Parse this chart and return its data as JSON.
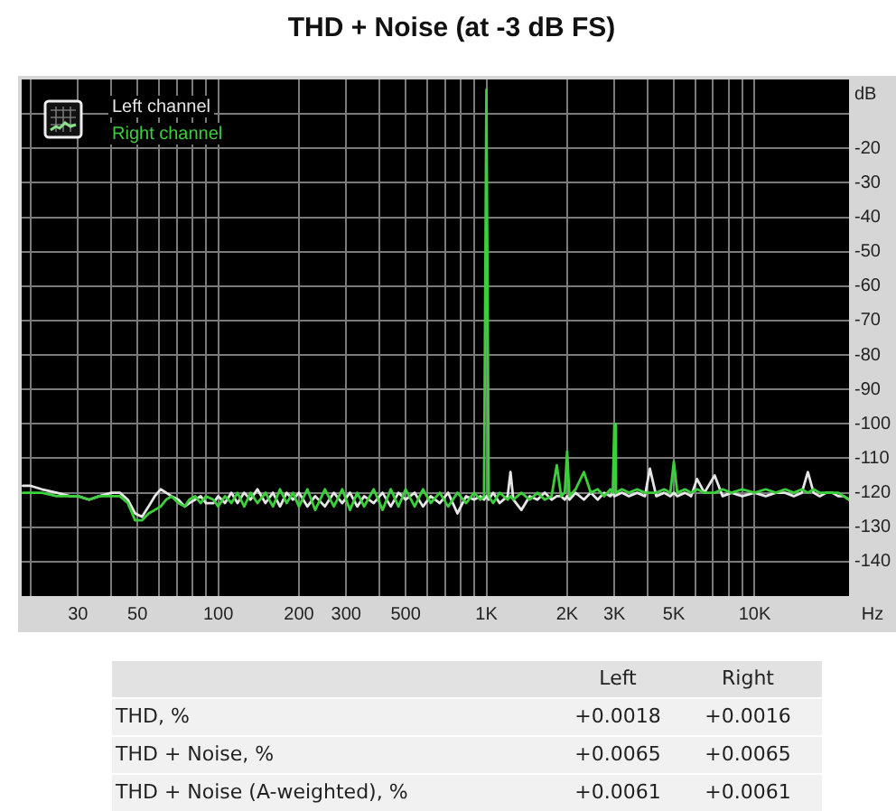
{
  "chart_data": {
    "type": "line",
    "title": "THD + Noise (at -3 dB FS)",
    "xlabel": "Hz",
    "ylabel": "dB",
    "log": "x",
    "grid": true,
    "legend": "top left",
    "marker": "none",
    "line_style": "solid",
    "xlim": [
      18.5,
      22500
    ],
    "ylim": [
      -150,
      0
    ],
    "xticks": [
      {
        "value": 20,
        "label": null
      },
      30,
      {
        "value": 40,
        "label": null
      },
      50,
      {
        "value": 60,
        "label": null
      },
      {
        "value": 70,
        "label": null
      },
      {
        "value": 80,
        "label": null
      },
      {
        "value": 90,
        "label": null
      },
      100,
      200,
      300,
      {
        "value": 400,
        "label": null
      },
      500,
      {
        "value": 600,
        "label": null
      },
      {
        "value": 700,
        "label": null
      },
      {
        "value": 800,
        "label": null
      },
      {
        "value": 900,
        "label": null
      },
      {
        "value": 1000,
        "label": "1K"
      },
      {
        "value": 2000,
        "label": "2K"
      },
      {
        "value": 3000,
        "label": "3K"
      },
      {
        "value": 4000,
        "label": null
      },
      {
        "value": 5000,
        "label": "5K"
      },
      {
        "value": 6000,
        "label": null
      },
      {
        "value": 7000,
        "label": null
      },
      {
        "value": 8000,
        "label": null
      },
      {
        "value": 9000,
        "label": null
      },
      {
        "value": 10000,
        "label": "10K"
      }
    ],
    "yticks": [
      {
        "value": -10,
        "label": null
      },
      -20,
      -30,
      -40,
      -50,
      -60,
      -70,
      -80,
      -90,
      -100,
      -110,
      -120,
      -130,
      -140
    ],
    "x": [
      18.7,
      20,
      22,
      25,
      28,
      30,
      33,
      36,
      40,
      43,
      46,
      49,
      52,
      55,
      58,
      61,
      64,
      67,
      71,
      75,
      78,
      82,
      86,
      90,
      96,
      100,
      106,
      112,
      118,
      125,
      132,
      140,
      150,
      160,
      170,
      180,
      190,
      200,
      215,
      230,
      250,
      270,
      290,
      310,
      330,
      350,
      380,
      410,
      440,
      470,
      500,
      540,
      580,
      620,
      670,
      720,
      780,
      840,
      900,
      950,
      980,
      1000,
      1020,
      1060,
      1120,
      1200,
      1230,
      1260,
      1350,
      1450,
      1550,
      1650,
      1750,
      1830,
      1900,
      1960,
      2000,
      2040,
      2150,
      2310,
      2450,
      2600,
      2750,
      2900,
      2960,
      3000,
      3040,
      3200,
      3400,
      3650,
      3900,
      4070,
      4300,
      4600,
      4850,
      5000,
      5150,
      5500,
      5800,
      6100,
      6500,
      7100,
      7600,
      8200,
      9000,
      10000,
      11000,
      12000,
      13000,
      14000,
      15000,
      15800,
      16600,
      17500,
      18500,
      19500,
      20500,
      21500,
      22500
    ],
    "series": [
      {
        "name": "Left channel",
        "color": "#e6e6e6",
        "values": [
          -118,
          -118,
          -119,
          -120,
          -121,
          -121,
          -122,
          -121,
          -120,
          -120,
          -122,
          -126,
          -127,
          -124,
          -121,
          -119,
          -120,
          -121,
          -122,
          -124,
          -123,
          -122,
          -121,
          -123,
          -123,
          -121,
          -123,
          -120,
          -123,
          -120,
          -122,
          -119,
          -123,
          -120,
          -124,
          -120,
          -122,
          -120,
          -124,
          -121,
          -124,
          -120,
          -123,
          -120,
          -124,
          -121,
          -123,
          -120,
          -124,
          -120,
          -122,
          -120,
          -124,
          -121,
          -123,
          -120,
          -126,
          -121,
          -122,
          -121,
          -122,
          -121,
          -122,
          -120,
          -123,
          -121,
          -114,
          -122,
          -125,
          -121,
          -122,
          -120,
          -122,
          -121,
          -121,
          -122,
          -121,
          -122,
          -120,
          -122,
          -120,
          -122,
          -120,
          -121,
          -120,
          -121,
          -121,
          -120,
          -121,
          -120,
          -121,
          -113,
          -121,
          -120,
          -121,
          -120,
          -121,
          -120,
          -121,
          -116,
          -120,
          -115,
          -121,
          -120,
          -121,
          -120,
          -121,
          -120,
          -120,
          -121,
          -120,
          -114,
          -120,
          -121,
          -120,
          -120,
          -121,
          -121,
          -122
        ]
      },
      {
        "name": "Right channel",
        "color": "#3ccf3c",
        "values": [
          -120,
          -120,
          -120,
          -121,
          -121,
          -121,
          -122,
          -121,
          -121,
          -121,
          -123,
          -128,
          -128,
          -126,
          -125,
          -124,
          -122,
          -121,
          -123,
          -124,
          -122,
          -121,
          -123,
          -121,
          -122,
          -124,
          -121,
          -123,
          -120,
          -124,
          -120,
          -123,
          -120,
          -124,
          -119,
          -123,
          -120,
          -124,
          -119,
          -125,
          -119,
          -124,
          -119,
          -125,
          -120,
          -124,
          -119,
          -125,
          -119,
          -124,
          -119,
          -124,
          -119,
          -123,
          -120,
          -124,
          -120,
          -123,
          -120,
          -122,
          -121,
          -3,
          -121,
          -123,
          -120,
          -122,
          -121,
          -122,
          -120,
          -122,
          -120,
          -122,
          -121,
          -112,
          -121,
          -120,
          -108,
          -121,
          -119,
          -114,
          -120,
          -119,
          -121,
          -119,
          -120,
          -100,
          -120,
          -119,
          -120,
          -119,
          -120,
          -120,
          -120,
          -119,
          -120,
          -111,
          -120,
          -119,
          -120,
          -119,
          -120,
          -120,
          -119,
          -120,
          -119,
          -120,
          -119,
          -120,
          -119,
          -120,
          -119,
          -120,
          -119,
          -120,
          -120,
          -120,
          -120,
          -121,
          -122
        ]
      }
    ],
    "annotations": [
      "Left",
      "Right",
      "THD, %",
      "+0.0018",
      "+0.0016",
      "THD + Noise, %",
      "+0.0065",
      "+0.0065",
      "THD + Noise (A-weighted), %",
      "+0.0061",
      "+0.0061"
    ]
  }
}
